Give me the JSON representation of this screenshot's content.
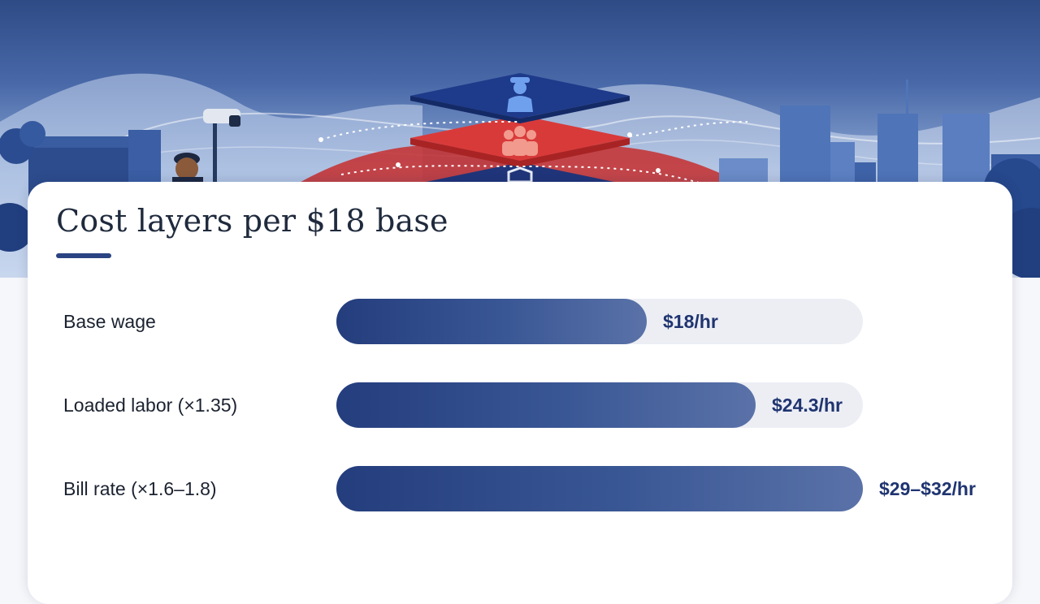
{
  "colors": {
    "bar_dark": "#243d7d",
    "bar_light": "#5a72a8",
    "track": "#eceef4",
    "value_text": "#1f3470",
    "accent_red": "#d33a3a"
  },
  "hero": {
    "icons": [
      "security-guard-icon",
      "team-icon",
      "shield-icon",
      "security-camera-icon"
    ]
  },
  "chart_data": {
    "type": "bar",
    "orientation": "horizontal",
    "title": "Cost layers per $18 base",
    "categories": [
      "Base wage",
      "Loaded labor (×1.35)",
      "Bill rate (×1.6–1.8)"
    ],
    "values": [
      18,
      24.3,
      30.5
    ],
    "value_labels": [
      "$18/hr",
      "$24.3/hr",
      "$29–$32/hr"
    ],
    "xlim": [
      0,
      30.5
    ],
    "grid": false,
    "legend": "none"
  }
}
